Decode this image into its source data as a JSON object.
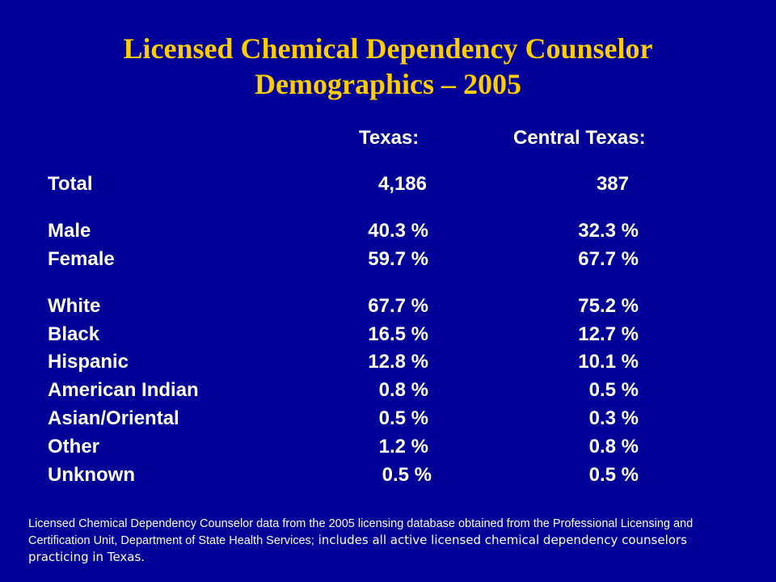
{
  "title": {
    "line1": "Licensed Chemical Dependency Counselor",
    "line2": "Demographics – 2005"
  },
  "columns": {
    "texas": "Texas:",
    "central": "Central Texas:"
  },
  "rows": [
    {
      "label": "Total",
      "texas": "4,186",
      "central": "387"
    },
    {
      "label": "Male",
      "texas": "40.3 %",
      "central": "32.3 %"
    },
    {
      "label": "Female",
      "texas": "59.7 %",
      "central": "67.7 %"
    },
    {
      "label": "White",
      "texas": "67.7 %",
      "central": "75.2 %"
    },
    {
      "label": "Black",
      "texas": "16.5 %",
      "central": "12.7 %"
    },
    {
      "label": "Hispanic",
      "texas": "12.8 %",
      "central": "10.1 %"
    },
    {
      "label": "American Indian",
      "texas": "0.8 %",
      "central": "0.5 %"
    },
    {
      "label": "Asian/Oriental",
      "texas": "0.5 %",
      "central": "0.3 %"
    },
    {
      "label": "Other",
      "texas": "1.2 %",
      "central": "0.8 %"
    },
    {
      "label": "Unknown",
      "texas": "0.5 %",
      "central": "0.5 %"
    }
  ],
  "footnote": {
    "part1": "Licensed Chemical Dependency Counselor data from the 2005 licensing database obtained from the Professional Licensing and Certification Unit, Department of State Health Services;",
    "part2": " includes all active licensed chemical dependency counselors practicing in Texas."
  },
  "colors": {
    "background": "#000099",
    "title": "#ffcc00",
    "text": "#ffffff"
  }
}
